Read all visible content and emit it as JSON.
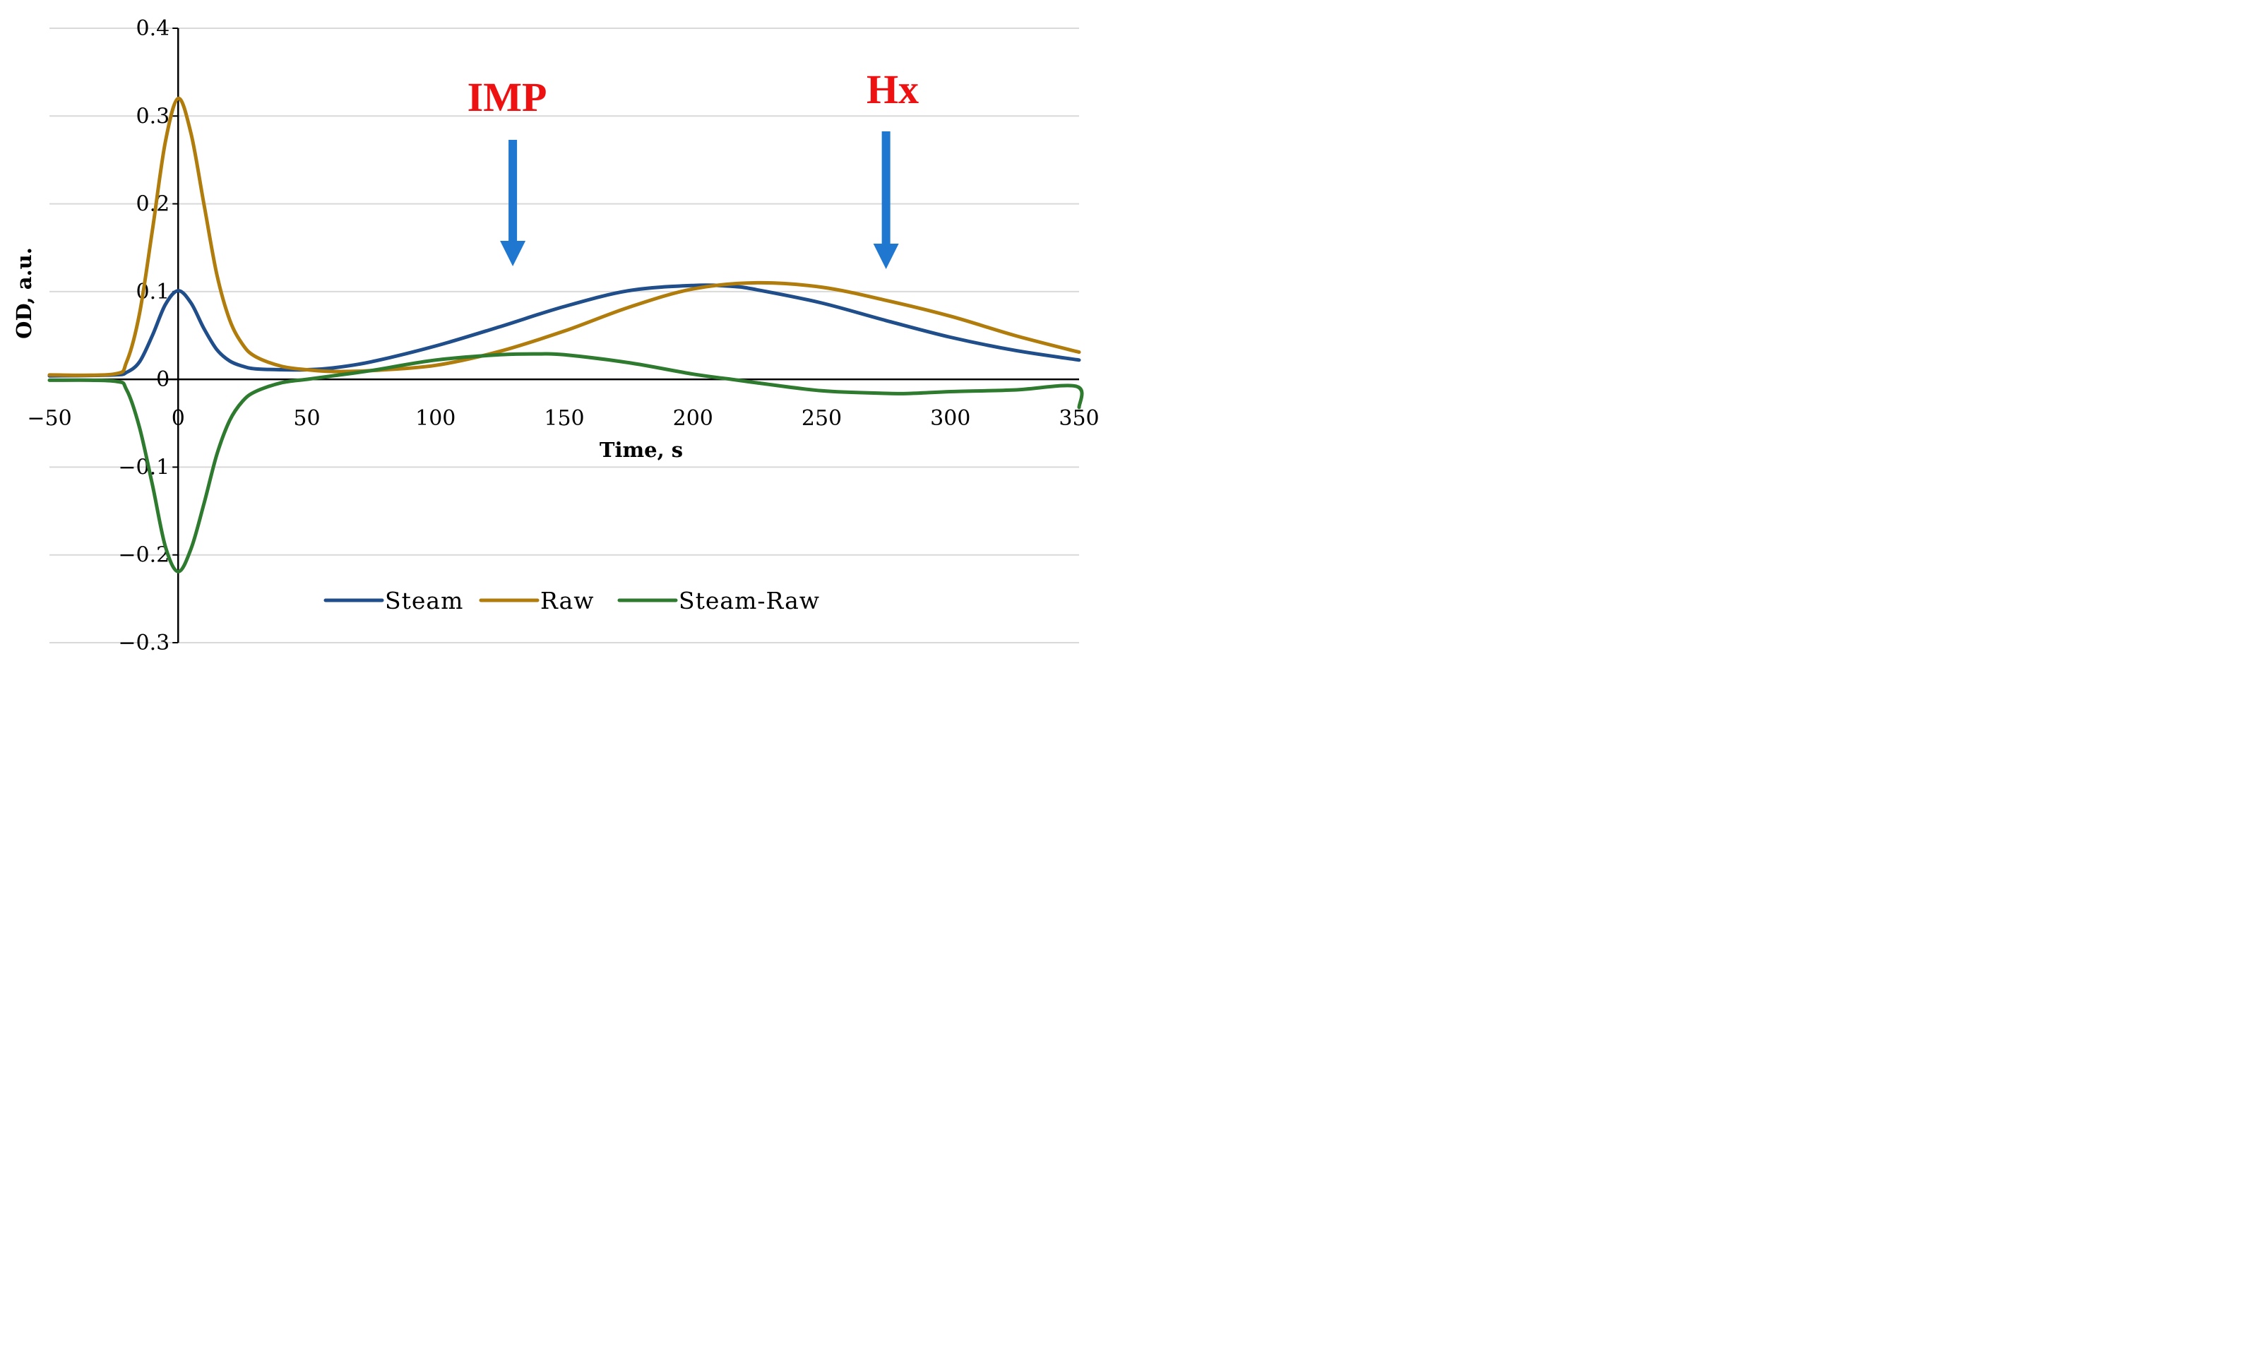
{
  "chart_data": {
    "type": "line",
    "title": "",
    "xlabel": "Time, s",
    "ylabel": "OD, a.u.",
    "xlim": [
      -50,
      350
    ],
    "ylim": [
      -0.3,
      0.4
    ],
    "x_ticks": [
      -50,
      0,
      50,
      100,
      150,
      200,
      250,
      300,
      350
    ],
    "x_tick_labels": [
      "−50",
      "0",
      "50",
      "100",
      "150",
      "200",
      "250",
      "300",
      "350"
    ],
    "y_ticks": [
      -0.3,
      -0.2,
      -0.1,
      0,
      0.1,
      0.2,
      0.3,
      0.4
    ],
    "y_tick_labels": [
      "−0.3",
      "−0.2",
      "−0.1",
      "0",
      "0.1",
      "0.2",
      "0.3",
      "0.4"
    ],
    "grid": "horizontal",
    "legend_position": "bottom-center",
    "series": [
      {
        "name": "Steam",
        "color": "#1f4e8a",
        "x": [
          -50,
          -25,
          -20,
          -15,
          -10,
          -5,
          0,
          5,
          10,
          15,
          20,
          25,
          30,
          40,
          50,
          60,
          75,
          100,
          125,
          150,
          175,
          200,
          215,
          225,
          250,
          275,
          300,
          325,
          350
        ],
        "y": [
          0.004,
          0.005,
          0.008,
          0.02,
          0.05,
          0.085,
          0.101,
          0.087,
          0.058,
          0.034,
          0.021,
          0.015,
          0.012,
          0.011,
          0.011,
          0.013,
          0.02,
          0.038,
          0.06,
          0.083,
          0.101,
          0.107,
          0.106,
          0.102,
          0.087,
          0.067,
          0.048,
          0.033,
          0.022
        ]
      },
      {
        "name": "Raw",
        "color": "#b07c0c",
        "x": [
          -50,
          -25,
          -20,
          -15,
          -10,
          -5,
          0,
          5,
          10,
          15,
          20,
          25,
          30,
          40,
          50,
          60,
          75,
          100,
          125,
          150,
          175,
          200,
          225,
          250,
          275,
          300,
          325,
          350
        ],
        "y": [
          0.005,
          0.006,
          0.02,
          0.075,
          0.17,
          0.27,
          0.32,
          0.28,
          0.2,
          0.12,
          0.068,
          0.04,
          0.026,
          0.015,
          0.011,
          0.009,
          0.01,
          0.016,
          0.032,
          0.055,
          0.082,
          0.103,
          0.11,
          0.105,
          0.09,
          0.072,
          0.05,
          0.031
        ]
      },
      {
        "name": "Steam-Raw",
        "color": "#2e7a2e",
        "x": [
          -50,
          -25,
          -20,
          -15,
          -10,
          -5,
          0,
          5,
          10,
          15,
          20,
          25,
          30,
          40,
          50,
          60,
          75,
          100,
          125,
          140,
          150,
          175,
          200,
          215,
          225,
          250,
          275,
          285,
          300,
          325,
          349,
          350
        ],
        "y": [
          -0.001,
          -0.002,
          -0.012,
          -0.055,
          -0.12,
          -0.19,
          -0.219,
          -0.193,
          -0.142,
          -0.086,
          -0.047,
          -0.025,
          -0.014,
          -0.004,
          0.0,
          0.004,
          0.01,
          0.022,
          0.028,
          0.029,
          0.028,
          0.019,
          0.006,
          0.0,
          -0.004,
          -0.013,
          -0.016,
          -0.016,
          -0.014,
          -0.012,
          -0.008,
          -0.032
        ]
      }
    ],
    "annotations": [
      {
        "text": "IMP",
        "arrow_x": 130,
        "color": "#ee1111"
      },
      {
        "text": "Hx",
        "arrow_x": 275,
        "color": "#ee1111"
      }
    ],
    "arrow_color": "#1f77d0",
    "grid_color": "#d9d9d9",
    "axis_color": "#000000"
  }
}
